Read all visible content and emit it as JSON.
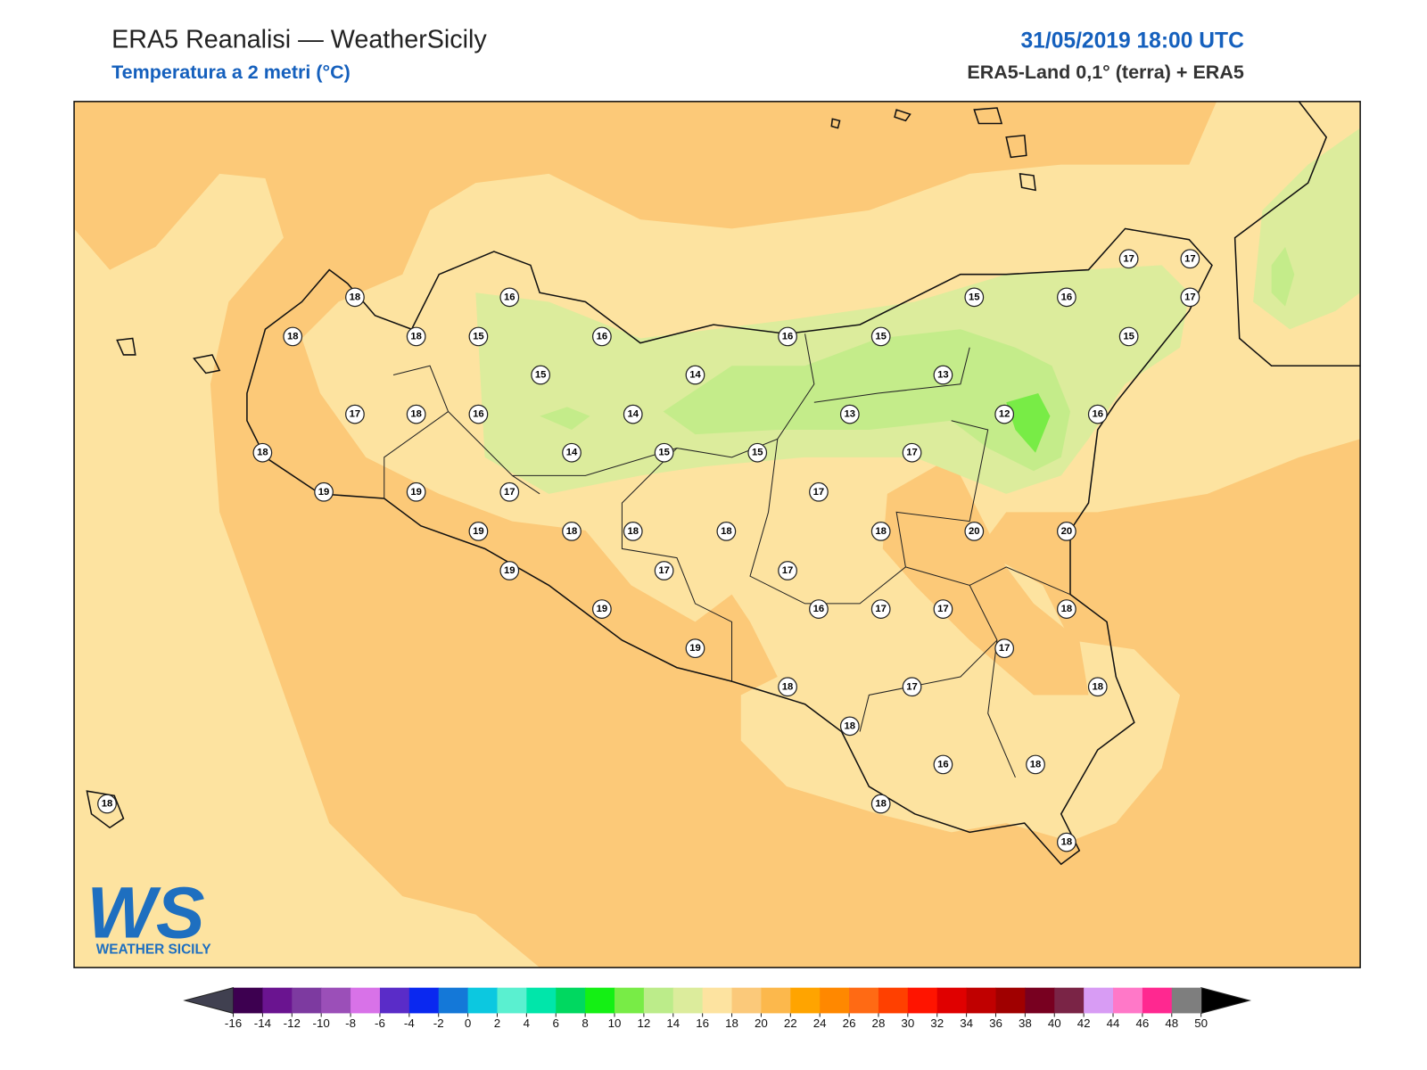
{
  "header": {
    "title": "ERA5 Reanalisi — WeatherSicily",
    "subtitle": "Temperatura a 2 metri (°C)",
    "date": "31/05/2019 18:00 UTC",
    "source": "ERA5-Land 0,1° (terra) + ERA5"
  },
  "logo": {
    "initials": "WS",
    "text": "WEATHER SICILY"
  },
  "stations": {
    "values": [
      18,
      16,
      18,
      18,
      15,
      16,
      16,
      15,
      15,
      16,
      17,
      17,
      17,
      15,
      15,
      14,
      13,
      17,
      18,
      16,
      14,
      13,
      12,
      16,
      18,
      14,
      15,
      15,
      17,
      19,
      19,
      17,
      17,
      19,
      18,
      18,
      18,
      18,
      20,
      20,
      19,
      17,
      17,
      19,
      16,
      17,
      17,
      18,
      19,
      17,
      18,
      17,
      18,
      18,
      16,
      18,
      18,
      18,
      18
    ]
  },
  "colorbar": {
    "ticks": [
      -16,
      -14,
      -12,
      -10,
      -8,
      -6,
      -4,
      -2,
      0,
      2,
      4,
      6,
      8,
      10,
      12,
      14,
      16,
      18,
      20,
      22,
      24,
      26,
      28,
      30,
      32,
      34,
      36,
      38,
      40,
      42,
      44,
      46,
      48,
      50
    ],
    "colors": [
      "#3d0050",
      "#6a1490",
      "#7d3aa0",
      "#9b4fb8",
      "#d872e8",
      "#5a2cc8",
      "#0a28f0",
      "#1478d8",
      "#0cc8e0",
      "#5af0d0",
      "#00e6aa",
      "#00d860",
      "#14f014",
      "#78ec46",
      "#bcec8a",
      "#dcec9c",
      "#fde3a0",
      "#fbc97a",
      "#fcb84c",
      "#ffa400",
      "#ff8800",
      "#ff6a14",
      "#ff4000",
      "#ff1400",
      "#e00000",
      "#c00000",
      "#a00000",
      "#780020",
      "#7a2446",
      "#d89cf4",
      "#ff78c8",
      "#ff2890",
      "#7e7e7e"
    ],
    "under_color": "#404050",
    "over_color": "#000000"
  }
}
